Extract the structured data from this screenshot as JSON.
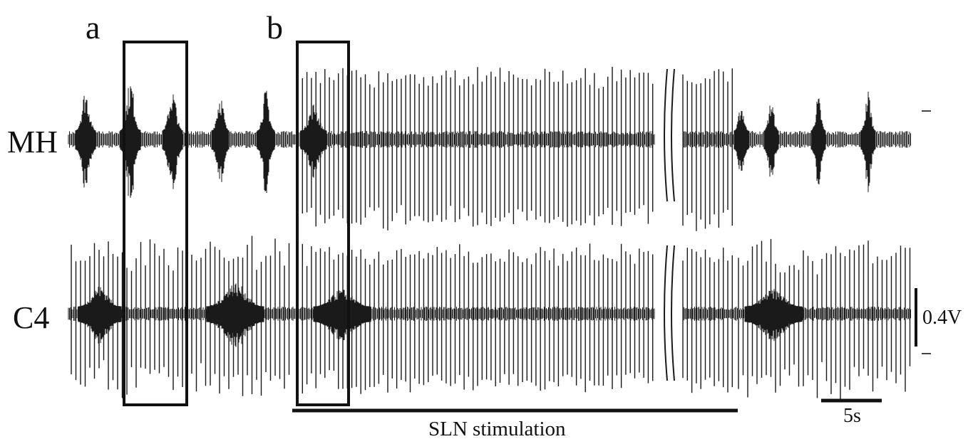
{
  "panels": {
    "a": "a",
    "b": "b"
  },
  "channels": {
    "mh": "MH",
    "c4": "C4"
  },
  "scale_bars": {
    "voltage": "0.4V",
    "time": "5s"
  },
  "stimulation_label": "SLN stimulation",
  "colors": {
    "trace": "#1a1a1a",
    "box": "#111111",
    "background": "#ffffff"
  }
}
